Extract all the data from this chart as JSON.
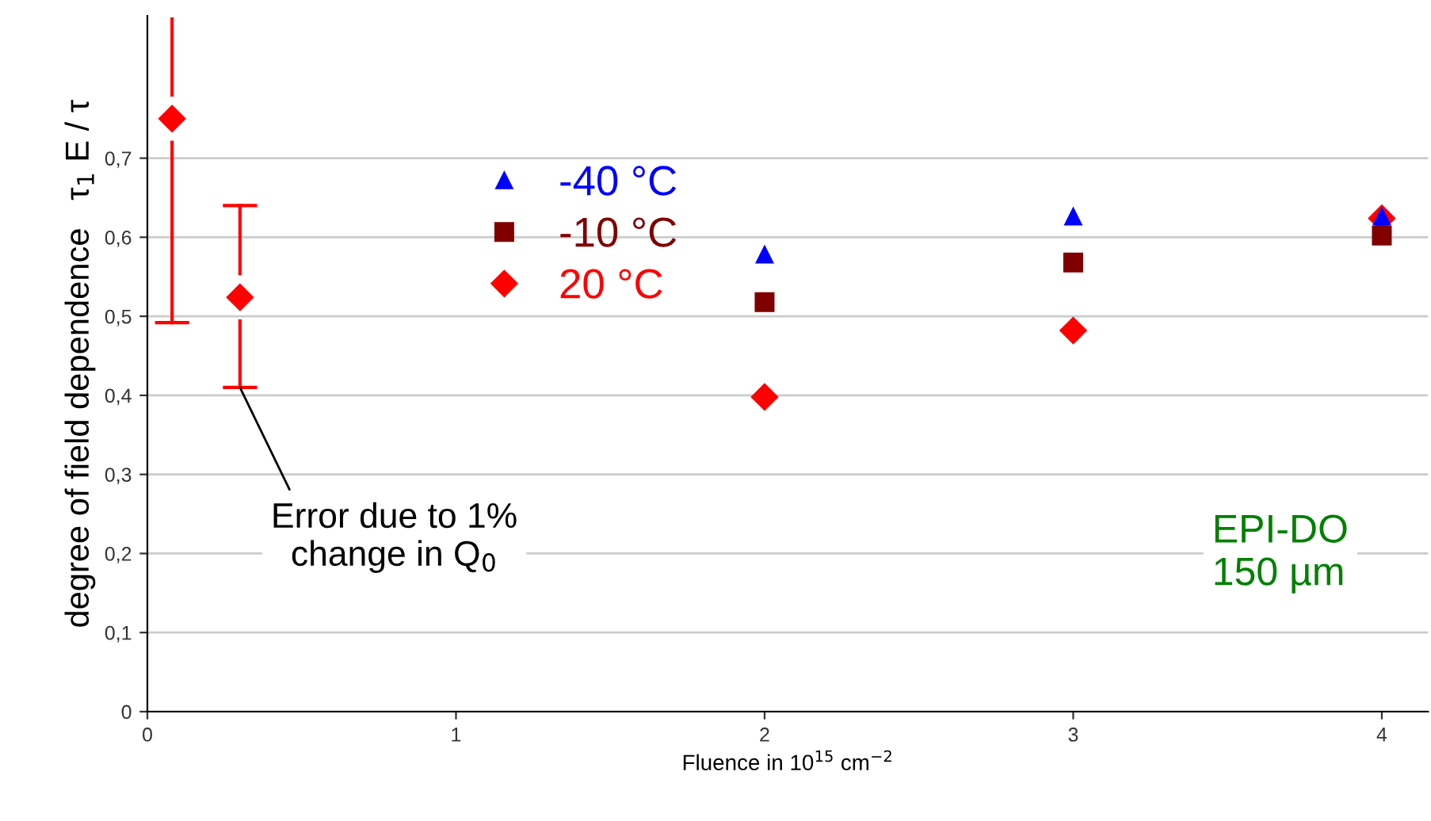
{
  "chart_data": {
    "type": "scatter",
    "xlabel": "Fluence in 10$^{15}$ cm$^{−2}$",
    "ylabel": "degree of field dependence   τ$_{1}$ E / τ",
    "xlim": [
      0,
      4.15
    ],
    "xticks": [
      0,
      1,
      2,
      3,
      4
    ],
    "ylim": [
      0,
      0.88
    ],
    "yticks": [
      0,
      {
        "value": 0.1,
        "label": "0,1"
      },
      {
        "value": 0.2,
        "label": "0,2"
      },
      {
        "value": 0.3,
        "label": "0,3"
      },
      {
        "value": 0.4,
        "label": "0,4"
      },
      {
        "value": 0.5,
        "label": "0,5"
      },
      {
        "value": 0.6,
        "label": "0,6"
      },
      {
        "value": 0.7,
        "label": "0,7"
      }
    ],
    "grid": "y",
    "legend": "top",
    "series": [
      {
        "name": "-40 °C",
        "color": "#0000ff",
        "marker": "triangle",
        "x": [
          2,
          3,
          4
        ],
        "values": [
          0.578,
          0.626,
          0.626
        ]
      },
      {
        "name": "-10 °C",
        "color": "#800000",
        "marker": "square",
        "x": [
          2,
          3,
          4
        ],
        "values": [
          0.518,
          0.568,
          0.602
        ]
      },
      {
        "name": "20 °C",
        "color": "#ff0000",
        "marker": "diamond",
        "x": [
          0.08,
          0.3,
          2,
          3,
          4
        ],
        "values": [
          0.75,
          0.524,
          0.398,
          0.482,
          0.624
        ],
        "errors": [
          [
            0.492,
            0.876
          ],
          [
            0.41,
            0.64
          ],
          null,
          null,
          null
        ]
      }
    ],
    "annotations": [
      {
        "text": "Error due to 1%\nchange in Q$_{0}$",
        "x": 0.3,
        "y": 0.41
      },
      "EPI-DO\n150 µm"
    ]
  }
}
